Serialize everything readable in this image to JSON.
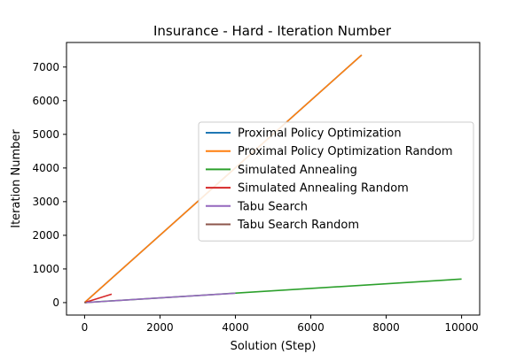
{
  "chart_data": {
    "type": "line",
    "title": "Insurance - Hard - Iteration Number",
    "xlabel": "Solution (Step)",
    "ylabel": "Iteration Number",
    "xlim": [
      -480,
      10480
    ],
    "ylim": [
      -370,
      7730
    ],
    "xticks": [
      0,
      2000,
      4000,
      6000,
      8000,
      10000
    ],
    "yticks": [
      0,
      1000,
      2000,
      3000,
      4000,
      5000,
      6000,
      7000
    ],
    "legend_position": "center-right",
    "grid": false,
    "series": [
      {
        "name": "Proximal Policy Optimization",
        "color": "#1f77b4",
        "x": [
          0,
          7350
        ],
        "y": [
          0,
          7360
        ]
      },
      {
        "name": "Proximal Policy Optimization Random",
        "color": "#ff7f0e",
        "x": [
          0,
          7350
        ],
        "y": [
          0,
          7360
        ]
      },
      {
        "name": "Simulated Annealing",
        "color": "#2ca02c",
        "x": [
          0,
          10000
        ],
        "y": [
          0,
          700
        ]
      },
      {
        "name": "Simulated Annealing Random",
        "color": "#d62728",
        "x": [
          0,
          720
        ],
        "y": [
          0,
          250
        ]
      },
      {
        "name": "Tabu Search",
        "color": "#9467bd",
        "x": [
          0,
          4000
        ],
        "y": [
          0,
          280
        ]
      },
      {
        "name": "Tabu Search Random",
        "color": "#8c564b",
        "x": [
          0,
          50
        ],
        "y": [
          0,
          5
        ]
      }
    ]
  }
}
